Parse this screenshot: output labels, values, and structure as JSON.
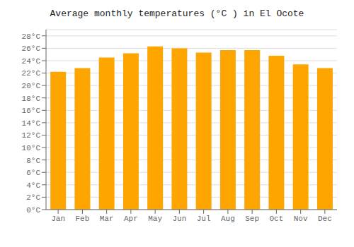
{
  "chart_data": {
    "type": "bar",
    "title": "Average monthly temperatures (°C ) in El Ocote",
    "categories": [
      "Jan",
      "Feb",
      "Mar",
      "Apr",
      "May",
      "Jun",
      "Jul",
      "Aug",
      "Sep",
      "Oct",
      "Nov",
      "Dec"
    ],
    "values": [
      22.2,
      22.8,
      24.5,
      25.2,
      26.3,
      26.0,
      25.3,
      25.7,
      25.7,
      24.8,
      23.4,
      22.8
    ],
    "color": "#FFA500",
    "ylim": [
      0,
      29
    ],
    "yticks": [
      {
        "value": 0,
        "label": "0°C"
      },
      {
        "value": 2,
        "label": "2°C"
      },
      {
        "value": 4,
        "label": "4°C"
      },
      {
        "value": 6,
        "label": "6°C"
      },
      {
        "value": 8,
        "label": "8°C"
      },
      {
        "value": 10,
        "label": "10°C"
      },
      {
        "value": 12,
        "label": "12°C"
      },
      {
        "value": 14,
        "label": "14°C"
      },
      {
        "value": 16,
        "label": "16°C"
      },
      {
        "value": 18,
        "label": "18°C"
      },
      {
        "value": 20,
        "label": "20°C"
      },
      {
        "value": 22,
        "label": "22°C"
      },
      {
        "value": 24,
        "label": "24°C"
      },
      {
        "value": 26,
        "label": "26°C"
      },
      {
        "value": 28,
        "label": "28°C"
      }
    ],
    "grid": true
  }
}
